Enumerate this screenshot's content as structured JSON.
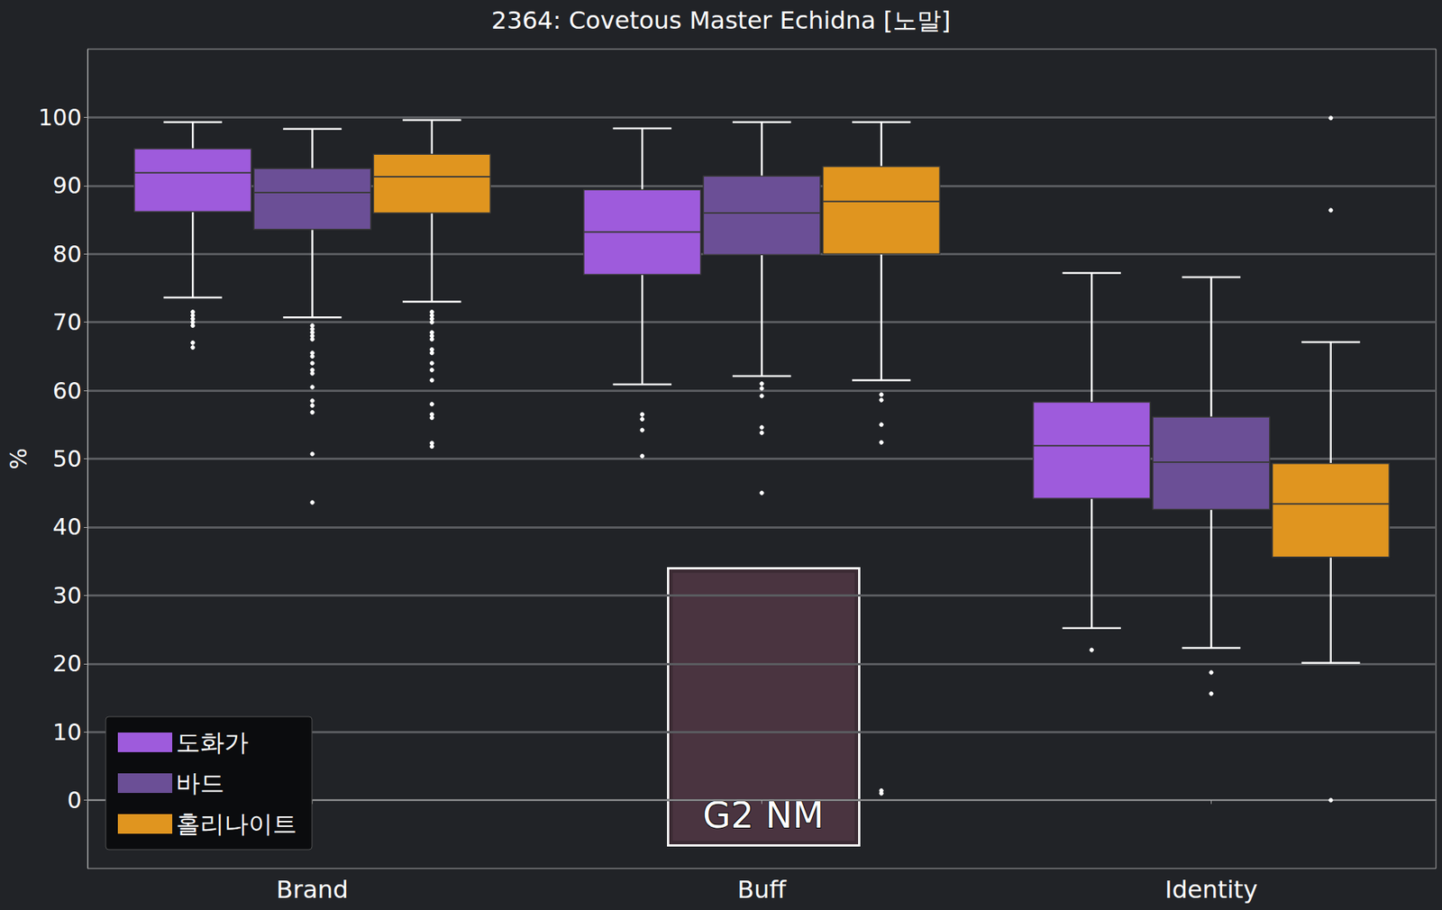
{
  "chart_data": {
    "type": "boxplot",
    "title": "2364: Covetous Master Echidna [노말]",
    "y_label": "%",
    "annotation": "G2 NM",
    "categories": [
      "Brand",
      "Buff",
      "Identity"
    ],
    "series": [
      {
        "name": "도화가",
        "color": "#9e5bdc",
        "values": [
          [
            73.6,
            86.2,
            91.9,
            95.4,
            99.3
          ],
          [
            60.9,
            77.0,
            83.2,
            89.4,
            98.4
          ],
          [
            25.2,
            44.2,
            51.9,
            58.3,
            77.2
          ]
        ],
        "outliers": [
          [
            71.5,
            71.0,
            70.5,
            70.0,
            69.5,
            67.0,
            66.3
          ],
          [
            56.5,
            55.8,
            54.2,
            50.4
          ],
          [
            22.0
          ]
        ]
      },
      {
        "name": "바드",
        "color": "#6b4f96",
        "values": [
          [
            70.7,
            83.6,
            89.0,
            92.5,
            98.3
          ],
          [
            62.1,
            79.9,
            86.0,
            91.4,
            99.3
          ],
          [
            22.3,
            42.6,
            49.5,
            56.1,
            76.6
          ]
        ],
        "outliers": [
          [
            69.5,
            69.0,
            68.5,
            68.0,
            67.5,
            65.5,
            65.0,
            64.0,
            63.0,
            62.5,
            60.5,
            58.5,
            57.8,
            56.8,
            50.7,
            43.6
          ],
          [
            61.0,
            60.3,
            59.2,
            54.6,
            53.8,
            45.0
          ],
          [
            18.7,
            15.6
          ]
        ]
      },
      {
        "name": "홀리나이트",
        "color": "#e0951f",
        "values": [
          [
            73.0,
            86.0,
            91.3,
            94.6,
            99.6
          ],
          [
            61.5,
            80.0,
            87.7,
            92.8,
            99.3
          ],
          [
            20.1,
            35.6,
            43.4,
            49.3,
            67.1
          ]
        ],
        "outliers": [
          [
            71.5,
            71.0,
            70.5,
            70.0,
            68.5,
            68.0,
            67.5,
            66.0,
            65.5,
            64.0,
            63.0,
            61.5,
            58.0,
            56.5,
            56.0,
            52.3,
            51.8
          ],
          [
            59.4,
            58.6,
            55.0,
            52.4,
            1.4,
            1.0
          ],
          [
            99.9,
            86.4,
            0.0
          ]
        ]
      }
    ],
    "ylim": [
      -10,
      110
    ],
    "yticks": [
      0,
      10,
      20,
      30,
      40,
      50,
      60,
      70,
      80,
      90,
      100
    ],
    "grid": true,
    "legend": "lower left"
  }
}
